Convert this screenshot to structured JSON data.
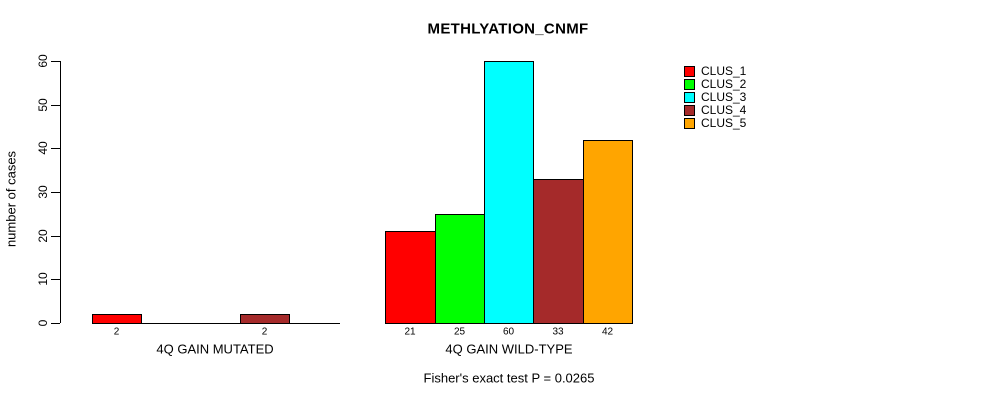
{
  "chart_data": {
    "type": "bar",
    "title": "METHLYATION_CNMF",
    "ylabel": "number of cases",
    "ylim": [
      0,
      60
    ],
    "yticks": [
      0,
      10,
      20,
      30,
      40,
      50,
      60
    ],
    "series": [
      "CLUS_1",
      "CLUS_2",
      "CLUS_3",
      "CLUS_4",
      "CLUS_5"
    ],
    "colors": [
      "#ff0000",
      "#00ff00",
      "#00ffff",
      "#a52a2a",
      "#ffa500"
    ],
    "groups": [
      {
        "label": "4Q GAIN MUTATED",
        "values": [
          2,
          0,
          0,
          2,
          0
        ],
        "value_labels": [
          "2",
          "",
          "",
          "2",
          ""
        ]
      },
      {
        "label": "4Q GAIN WILD-TYPE",
        "values": [
          21,
          25,
          60,
          33,
          42
        ],
        "value_labels": [
          "21",
          "25",
          "60",
          "33",
          "42"
        ]
      }
    ],
    "annotation": "Fisher's exact test P = 0.0265",
    "legend": {
      "position": "top-right",
      "entries": [
        "CLUS_1",
        "CLUS_2",
        "CLUS_3",
        "CLUS_4",
        "CLUS_5"
      ]
    },
    "grid": false,
    "background": "#ffffff",
    "bar_border_color": "#000000",
    "axis_color": "#000000"
  }
}
